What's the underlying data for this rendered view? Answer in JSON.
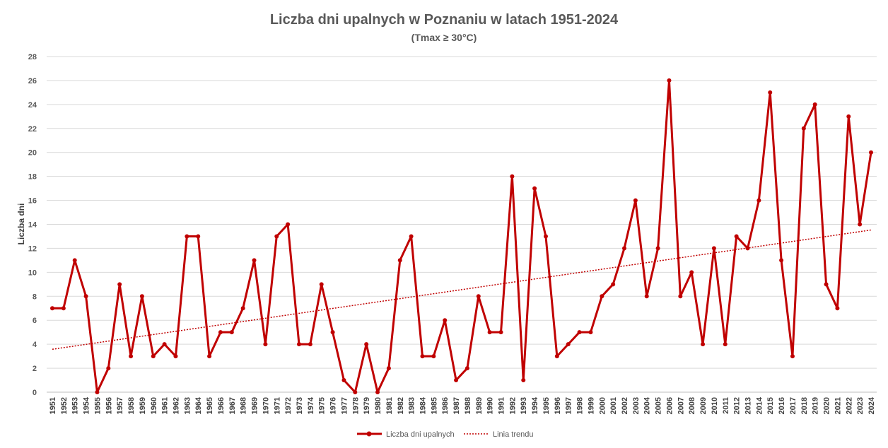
{
  "chart_data": {
    "type": "line",
    "title": "Liczba dni upalnych w Poznaniu w latach 1951-2024",
    "subtitle": "(Tmax ≥ 30°C)",
    "xlabel": "",
    "ylabel": "Liczba dni",
    "ylim": [
      0,
      28
    ],
    "yticks": [
      0,
      2,
      4,
      6,
      8,
      10,
      12,
      14,
      16,
      18,
      20,
      22,
      24,
      26,
      28
    ],
    "grid": true,
    "legend_position": "bottom",
    "x": [
      1951,
      1952,
      1953,
      1954,
      1955,
      1956,
      1957,
      1958,
      1959,
      1960,
      1961,
      1962,
      1963,
      1964,
      1965,
      1966,
      1967,
      1968,
      1969,
      1970,
      1971,
      1972,
      1973,
      1974,
      1975,
      1976,
      1977,
      1978,
      1979,
      1980,
      1981,
      1982,
      1983,
      1984,
      1985,
      1986,
      1987,
      1988,
      1989,
      1990,
      1991,
      1992,
      1993,
      1994,
      1995,
      1996,
      1997,
      1998,
      1999,
      2000,
      2001,
      2002,
      2003,
      2004,
      2005,
      2006,
      2007,
      2008,
      2009,
      2010,
      2011,
      2012,
      2013,
      2014,
      2015,
      2016,
      2017,
      2018,
      2019,
      2020,
      2021,
      2022,
      2023,
      2024
    ],
    "series": [
      {
        "name": "Liczba dni upalnych",
        "color": "#C00000",
        "values": [
          7,
          7,
          11,
          8,
          0,
          2,
          9,
          3,
          8,
          3,
          4,
          3,
          13,
          13,
          3,
          5,
          5,
          7,
          11,
          4,
          13,
          14,
          4,
          4,
          9,
          5,
          1,
          0,
          4,
          0,
          2,
          11,
          13,
          3,
          3,
          6,
          1,
          2,
          8,
          5,
          5,
          18,
          1,
          17,
          13,
          3,
          4,
          5,
          5,
          8,
          9,
          12,
          16,
          8,
          12,
          26,
          8,
          10,
          4,
          12,
          4,
          13,
          12,
          16,
          25,
          11,
          3,
          22,
          24,
          9,
          7,
          23,
          14,
          20
        ]
      },
      {
        "name": "Linia trendu",
        "color": "#C00000",
        "style": "dotted",
        "type": "linear-trend"
      }
    ]
  }
}
